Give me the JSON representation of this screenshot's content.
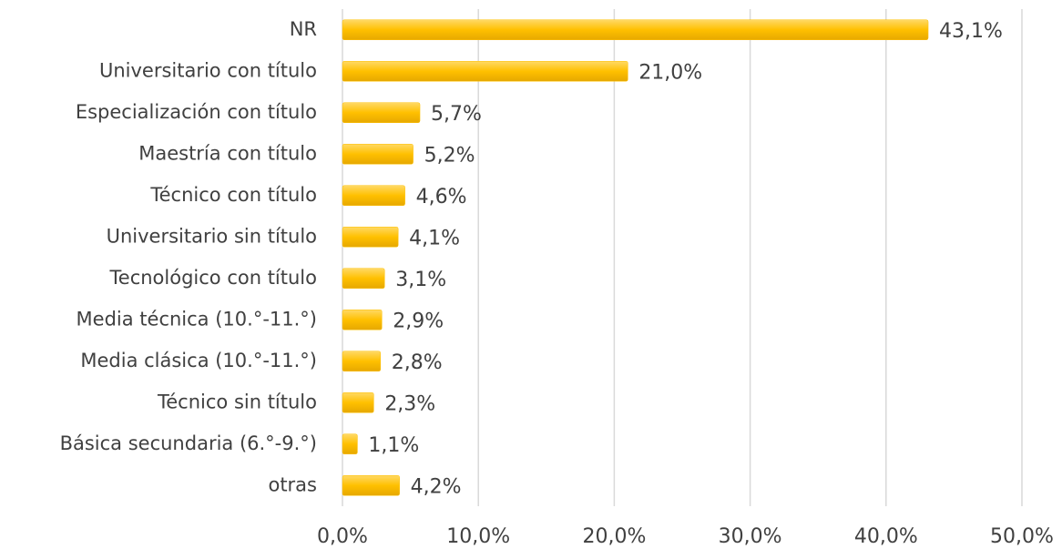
{
  "chart_data": {
    "type": "bar",
    "orientation": "horizontal",
    "categories": [
      "NR",
      "Universitario con título",
      "Especialización con título",
      "Maestría con título",
      "Técnico con título",
      "Universitario sin título",
      "Tecnológico con título",
      "Media técnica (10.°-11.°)",
      "Media clásica (10.°-11.°)",
      "Técnico sin título",
      "Básica secundaria (6.°-9.°)",
      "otras"
    ],
    "values": [
      43.1,
      21.0,
      5.7,
      5.2,
      4.6,
      4.1,
      3.1,
      2.9,
      2.8,
      2.3,
      1.1,
      4.2
    ],
    "value_labels": [
      "43,1%",
      "21,0%",
      "5,7%",
      "5,2%",
      "4,6%",
      "4,1%",
      "3,1%",
      "2,9%",
      "2,8%",
      "2,3%",
      "1,1%",
      "4,2%"
    ],
    "color": "#ffc000",
    "xlim": [
      0,
      50
    ],
    "xticks": [
      {
        "value": 0,
        "label": "0,0%"
      },
      {
        "value": 10,
        "label": "10,0%"
      },
      {
        "value": 20,
        "label": "20,0%"
      },
      {
        "value": 30,
        "label": "30,0%"
      },
      {
        "value": 40,
        "label": "40,0%"
      },
      {
        "value": 50,
        "label": "50,0%"
      }
    ],
    "grid": true
  }
}
